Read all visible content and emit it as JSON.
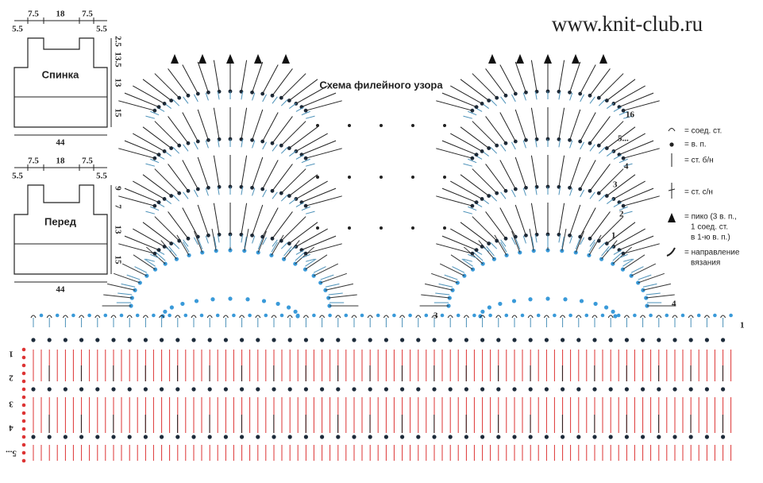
{
  "header": {
    "site": "www.knit-club.ru"
  },
  "schematics": [
    {
      "label": "Спинка",
      "top": [
        7.5,
        18,
        7.5
      ],
      "sides": [
        5.5,
        5.5
      ],
      "right": [
        2.5,
        13.5,
        13,
        15
      ],
      "bottom": 44
    },
    {
      "label": "Перед",
      "top": [
        7.5,
        18,
        7.5
      ],
      "sides": [
        5.5,
        5.5
      ],
      "right": [
        9,
        7,
        13,
        15
      ],
      "bottom": 44
    }
  ],
  "pattern": {
    "title": "Схема филейного узора",
    "fan_rows": [
      16,
      "5...",
      4,
      3,
      2,
      1
    ],
    "arch_rows": [
      3,
      4,
      1
    ],
    "base_rows": [
      1,
      2,
      3,
      4,
      "5..."
    ]
  },
  "legend": [
    "= соед. ст.",
    "= в. п.",
    "= ст. б/н",
    "= ст. с/н",
    "= пико (3 в. п.,",
    "1 соед. ст.",
    "в 1-ю в. п.)",
    "= направление",
    "вязания"
  ]
}
